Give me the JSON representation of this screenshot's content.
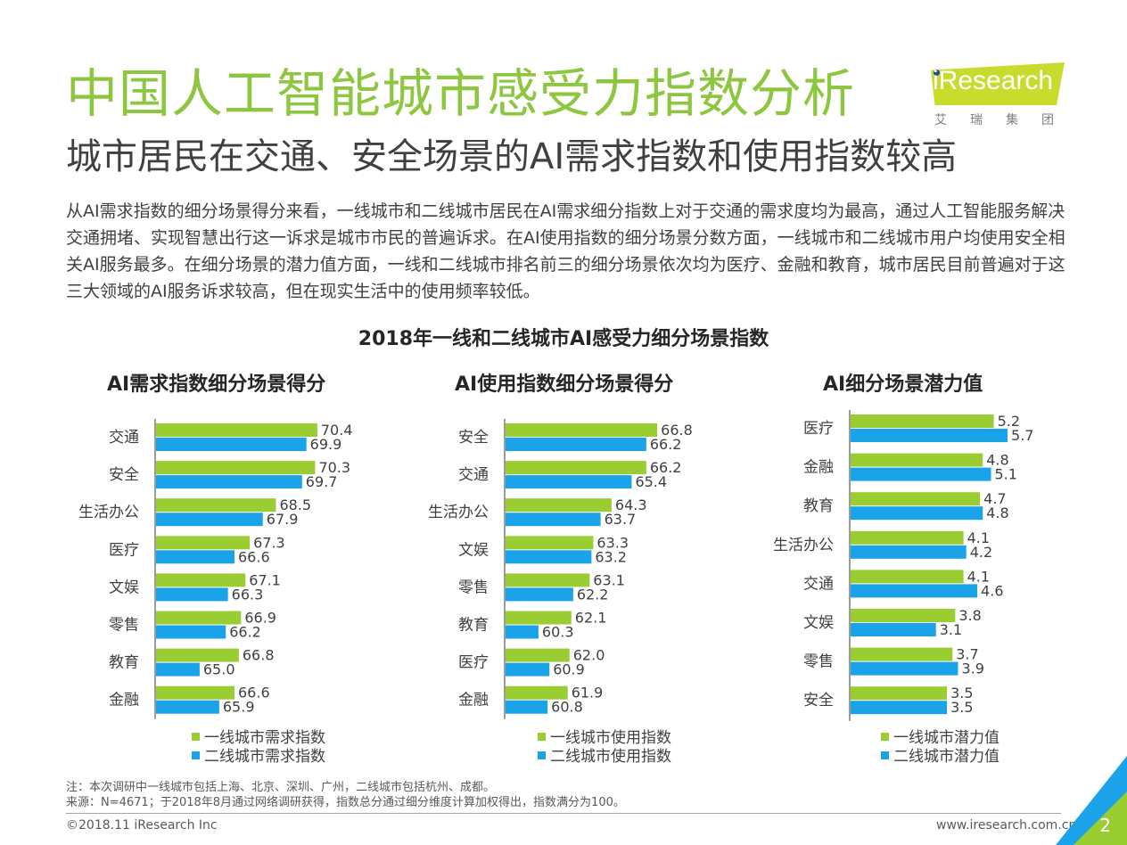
{
  "title": "中国人工智能城市感受力指数分析",
  "subtitle": "城市居民在交通、安全场景的AI需求指数和使用指数较高",
  "body_text": "从AI需求指数的细分场景得分来看，一线城市和二线城市居民在AI需求细分指数上对于交通的需求度均为最高，通过人工智能服务解决交通拥堵、实现智慧出行这一诉求是城市市民的普遍诉求。在AI使用指数的细分场景分数方面，一线城市和二线城市用户均使用安全相关AI服务最多。在细分场景的潜力值方面，一线和二线城市排名前三的细分场景依次均为医疗、金融和教育，城市居民目前普遍对于这三大领域的AI服务诉求较高，但在现实生活中的使用频率较低。",
  "logo": {
    "name": "iResearch",
    "sub": "艾瑞集团"
  },
  "main_chart_title": "2018年一线和二线城市AI感受力细分场景指数",
  "colors": {
    "tier1": "#9acd32",
    "tier2": "#1aa3e8",
    "title": "#8dc63f"
  },
  "chart_data": [
    {
      "type": "bar",
      "orientation": "horizontal",
      "title": "AI需求指数细分场景得分",
      "categories": [
        "交通",
        "安全",
        "生活办公",
        "医疗",
        "文娱",
        "零售",
        "教育",
        "金融"
      ],
      "series": [
        {
          "name": "一线城市需求指数",
          "values": [
            70.4,
            70.3,
            68.5,
            67.3,
            67.1,
            66.9,
            66.8,
            66.6
          ]
        },
        {
          "name": "二线城市需求指数",
          "values": [
            69.9,
            69.7,
            67.9,
            66.6,
            66.3,
            66.2,
            65.0,
            65.9
          ]
        }
      ],
      "xlim": [
        63,
        72
      ]
    },
    {
      "type": "bar",
      "orientation": "horizontal",
      "title": "AI使用指数细分场景得分",
      "categories": [
        "安全",
        "交通",
        "生活办公",
        "文娱",
        "零售",
        "教育",
        "医疗",
        "金融"
      ],
      "series": [
        {
          "name": "一线城市使用指数",
          "values": [
            66.8,
            66.2,
            64.3,
            63.3,
            63.1,
            62.1,
            62.0,
            61.9
          ]
        },
        {
          "name": "二线城市使用指数",
          "values": [
            66.2,
            65.4,
            63.7,
            63.2,
            62.2,
            60.3,
            60.9,
            60.8
          ]
        }
      ],
      "xlim": [
        58.5,
        68.5
      ]
    },
    {
      "type": "bar",
      "orientation": "horizontal",
      "title": "AI细分场景潜力值",
      "categories": [
        "医疗",
        "金融",
        "教育",
        "生活办公",
        "交通",
        "文娱",
        "零售",
        "安全"
      ],
      "series": [
        {
          "name": "一线城市潜力值",
          "values": [
            5.2,
            4.8,
            4.7,
            4.1,
            4.1,
            3.8,
            3.7,
            3.5
          ]
        },
        {
          "name": "二线城市潜力值",
          "values": [
            5.7,
            5.1,
            4.8,
            4.2,
            4.6,
            3.1,
            3.9,
            3.5
          ]
        }
      ],
      "xlim": [
        0,
        6.8
      ]
    }
  ],
  "footer": {
    "note": "注：本次调研中一线城市包括上海、北京、深圳、广州，二线城市包括杭州、成都。",
    "source": "来源：N=4671；于2018年8月通过网络调研获得，指数总分通过细分维度计算加权得出，指数满分为100。",
    "copyright": "©2018.11 iResearch Inc",
    "website": "www.iresearch.com.cn",
    "page": "2"
  }
}
